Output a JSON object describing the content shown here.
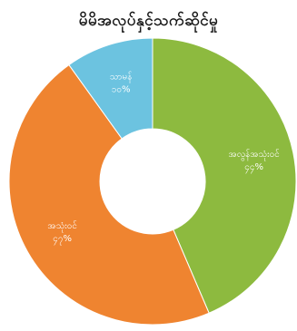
{
  "chart_data": {
    "type": "pie",
    "title": "မိမိအလုပ်နှင့်သက်ဆိုင်မှု",
    "donut": true,
    "slices": [
      {
        "label": "အလွန်အသုံးဝင်",
        "value_label": "၄၄%",
        "value": 44,
        "color": "#8dba3f"
      },
      {
        "label": "အသုံးဝင်",
        "value_label": "၄၇%",
        "value": 47,
        "color": "#ef8430"
      },
      {
        "label": "သာမန်",
        "value_label": "၁၀%",
        "value": 10,
        "color": "#6cc3e0"
      }
    ]
  }
}
